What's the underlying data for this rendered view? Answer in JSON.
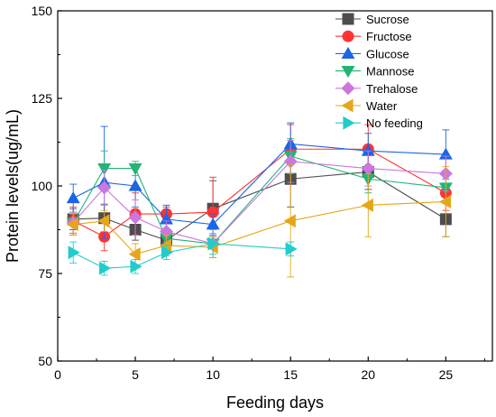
{
  "chart_data": {
    "type": "line",
    "xlabel": "Feeding days",
    "ylabel": "Protein levels(ug/mL)",
    "xlim": [
      0,
      28
    ],
    "ylim": [
      50,
      150
    ],
    "xticks": [
      0,
      5,
      10,
      15,
      20,
      25
    ],
    "yticks": [
      50,
      75,
      100,
      125,
      150
    ],
    "grid": false,
    "legend_position": "top-right",
    "series": [
      {
        "name": "Sucrose",
        "color": "#4d4d4d",
        "marker": "square",
        "x": [
          1,
          3,
          5,
          7,
          10,
          15,
          20,
          25
        ],
        "y": [
          90.5,
          90.8,
          87.5,
          84.5,
          93.5,
          102,
          104,
          90.5
        ],
        "err": [
          3,
          4,
          3,
          2,
          8,
          8,
          5,
          5
        ]
      },
      {
        "name": "Fructose",
        "color": "#ff3333",
        "marker": "circle",
        "x": [
          1,
          3,
          5,
          7,
          10,
          15,
          20,
          25
        ],
        "y": [
          90,
          85.5,
          92,
          92,
          92.5,
          110.5,
          110.5,
          98
        ],
        "err": [
          4,
          4,
          6,
          2,
          10,
          7,
          7,
          5
        ]
      },
      {
        "name": "Glucose",
        "color": "#1a66e6",
        "marker": "triangle-up",
        "x": [
          1,
          3,
          5,
          7,
          10,
          15,
          20,
          25
        ],
        "y": [
          96.5,
          101,
          100,
          90.5,
          89,
          112,
          110,
          109
        ],
        "err": [
          4,
          16,
          6,
          4,
          3,
          6,
          5,
          7
        ]
      },
      {
        "name": "Mannose",
        "color": "#22b573",
        "marker": "triangle-down",
        "x": [
          1,
          3,
          5,
          7,
          10,
          15,
          20,
          25
        ],
        "y": [
          89.5,
          105,
          105,
          85,
          83.5,
          108.5,
          102,
          99.5
        ],
        "err": [
          3,
          5,
          2,
          2,
          4,
          5,
          4,
          4
        ]
      },
      {
        "name": "Trehalose",
        "color": "#cc77dd",
        "marker": "diamond",
        "x": [
          1,
          3,
          5,
          7,
          10,
          15,
          20,
          25
        ],
        "y": [
          89.5,
          99.5,
          91,
          87,
          83.5,
          107,
          105,
          103.5
        ],
        "err": [
          3,
          5,
          5,
          3,
          4,
          6,
          5,
          5
        ]
      },
      {
        "name": "Water",
        "color": "#e6a61a",
        "marker": "triangle-left",
        "x": [
          1,
          3,
          5,
          7,
          10,
          15,
          20,
          25
        ],
        "y": [
          89,
          90,
          80.5,
          83,
          82.5,
          90,
          94.5,
          95.5
        ],
        "err": [
          3,
          3,
          3,
          3,
          3,
          16,
          9,
          10
        ]
      },
      {
        "name": "No feeding",
        "color": "#22cccc",
        "marker": "triangle-right",
        "x": [
          1,
          3,
          5,
          7,
          10,
          15
        ],
        "y": [
          81,
          76.5,
          77,
          81,
          83.5,
          82
        ],
        "err": [
          3,
          2,
          2,
          2,
          3,
          2
        ]
      }
    ]
  }
}
